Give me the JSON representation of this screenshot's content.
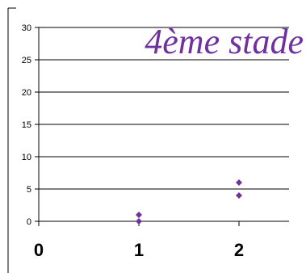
{
  "chart_data": {
    "type": "scatter",
    "title": "4ème stade",
    "xlabel": "",
    "ylabel": "",
    "xlim": [
      0,
      2.5
    ],
    "ylim": [
      0,
      30
    ],
    "xticks": [
      0,
      1,
      2
    ],
    "yticks": [
      0,
      5,
      10,
      15,
      20,
      25,
      30
    ],
    "grid": true,
    "legend": "none",
    "colors": {
      "marker": "#7030a0",
      "title": "#7030a0",
      "grid": "#000000"
    },
    "series": [
      {
        "values": [
          {
            "x": 1,
            "y": 1
          },
          {
            "x": 1,
            "y": 0
          },
          {
            "x": 2,
            "y": 6
          },
          {
            "x": 2,
            "y": 4
          }
        ]
      }
    ]
  }
}
